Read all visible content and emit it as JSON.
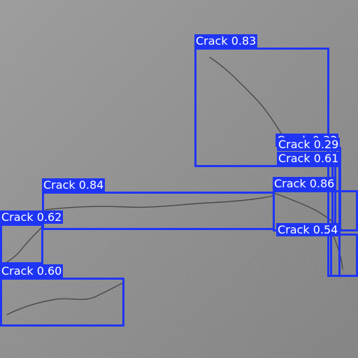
{
  "colors": {
    "box": "#1f35f5",
    "label_text": "#ffffff",
    "asphalt": "#8f8f8f"
  },
  "detections": [
    {
      "label": "Crack 0.83",
      "cls": "Crack",
      "score": 0.83
    },
    {
      "label": "Crack 0.33",
      "cls": "Crack",
      "score": 0.33
    },
    {
      "label": "Crack 0.29",
      "cls": "Crack",
      "score": 0.29
    },
    {
      "label": "Crack 0.61",
      "cls": "Crack",
      "score": 0.61
    },
    {
      "label": "Crack 0.84",
      "cls": "Crack",
      "score": 0.84
    },
    {
      "label": "Crack 0.86",
      "cls": "Crack",
      "score": 0.86
    },
    {
      "label": "Crack 0.62",
      "cls": "Crack",
      "score": 0.62
    },
    {
      "label": "Crack 0.54",
      "cls": "Crack",
      "score": 0.54
    },
    {
      "label": "Crack 0.60",
      "cls": "Crack",
      "score": 0.6
    }
  ]
}
